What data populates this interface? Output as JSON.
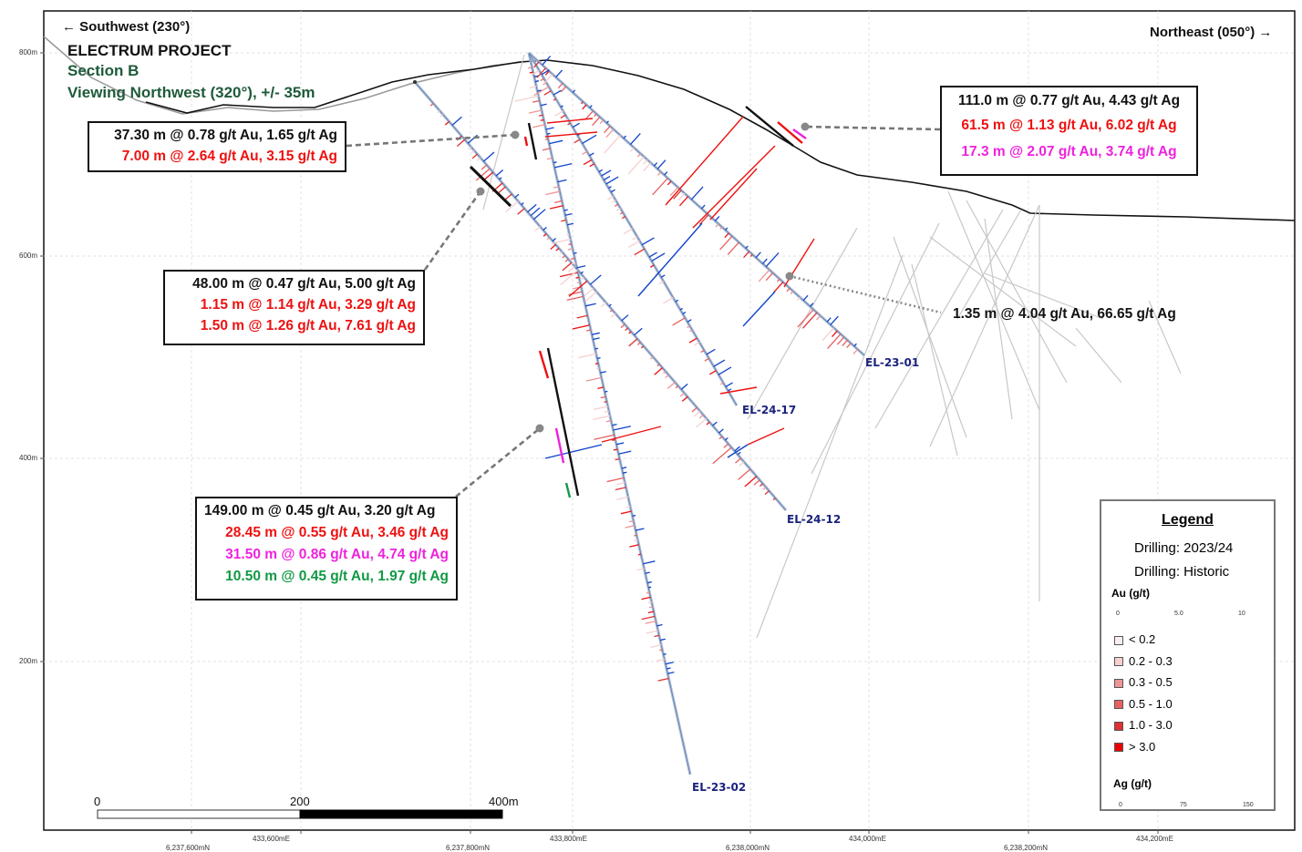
{
  "header": {
    "direction_left": "← Southwest (230°)",
    "direction_right": "Northeast (050°) →",
    "project": "ELECTRUM PROJECT",
    "section": "Section B",
    "viewing": "Viewing Northwest (320°), +/- 35m"
  },
  "colors": {
    "title_green": "#1f5a3a",
    "au_red": "#ee1111",
    "ag_blue": "#1144cc",
    "magenta": "#ee22dd",
    "green": "#119944"
  },
  "elevation_labels": [
    "800m",
    "600m",
    "400m",
    "200m"
  ],
  "easting_labels": [
    "433,600mE",
    "433,800mE",
    "434,000mE",
    "434,200mE"
  ],
  "northing_labels": [
    "6,237,600mN",
    "6,237,800mN",
    "6,238,000mN",
    "6,238,200mN"
  ],
  "holes": [
    "EL-23-01",
    "EL-24-17",
    "EL-24-12",
    "EL-23-02"
  ],
  "intercepts": {
    "box1": [
      "37.30 m @ 0.78 g/t Au, 1.65 g/t Ag",
      "7.00 m @ 2.64 g/t Au, 3.15 g/t Ag"
    ],
    "box2": [
      "111.0 m @ 0.77 g/t Au, 4.43 g/t Ag",
      "61.5 m @ 1.13 g/t Au, 6.02 g/t Ag",
      "17.3 m @ 2.07 g/t Au, 3.74 g/t Ag"
    ],
    "box3": [
      "48.00 m @ 0.47 g/t Au, 5.00 g/t Ag",
      "1.15 m @ 1.14 g/t Au, 3.29 g/t Ag",
      "1.50 m @ 1.26 g/t Au, 7.61 g/t Ag"
    ],
    "box4": [
      "1.35 m @ 4.04 g/t Au, 66.65 g/t Ag"
    ],
    "box5": [
      "149.00 m @ 0.45 g/t Au, 3.20 g/t Ag",
      "28.45 m @ 0.55 g/t Au, 3.46 g/t Ag",
      "31.50 m @ 0.86 g/t Au, 4.74 g/t Ag",
      "10.50 m @ 0.45 g/t Au, 1.97 g/t Ag"
    ]
  },
  "legend": {
    "title": "Legend",
    "drilling_new": "Drilling: 2023/24",
    "drilling_historic": "Drilling: Historic",
    "au_header": "Au (g/t)",
    "au_ticks": [
      "0",
      "5.0",
      "10"
    ],
    "au_classes": [
      {
        "label": "< 0.2",
        "color": "#fbeeee"
      },
      {
        "label": "0.2 - 0.3",
        "color": "#f7d0d0"
      },
      {
        "label": "0.3 - 0.5",
        "color": "#ef9595"
      },
      {
        "label": "0.5 - 1.0",
        "color": "#e86060"
      },
      {
        "label": "1.0 - 3.0",
        "color": "#e03030"
      },
      {
        "label": "> 3.0",
        "color": "#ee0000"
      }
    ],
    "ag_header": "Ag (g/t)",
    "ag_ticks": [
      "0",
      "75",
      "150"
    ]
  },
  "scale_bar": [
    "0",
    "200",
    "400m"
  ]
}
